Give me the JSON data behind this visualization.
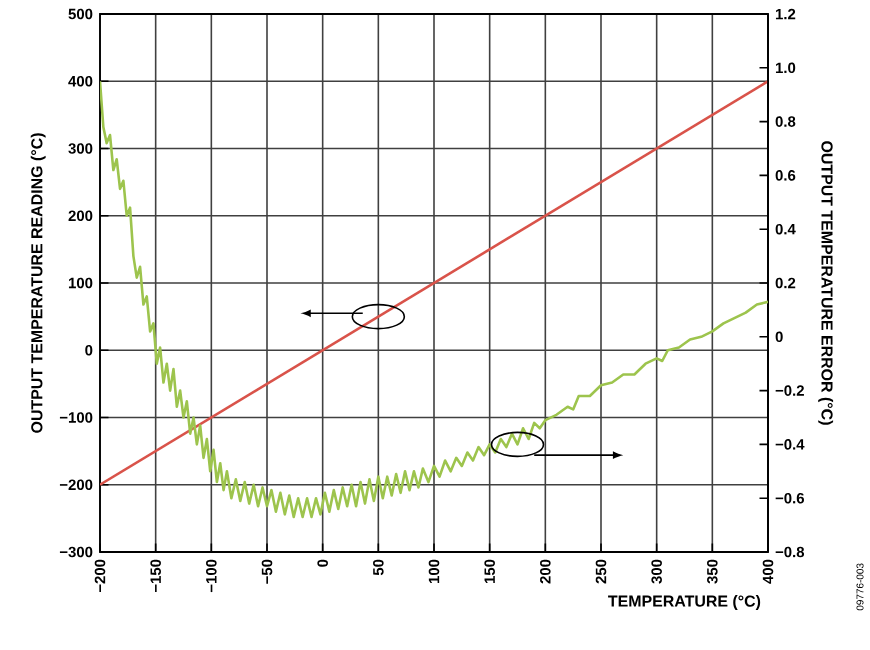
{
  "chart_data": {
    "type": "line",
    "xlabel": "TEMPERATURE (°C)",
    "ylabel": "OUTPUT TEMPERATURE READING (°C)",
    "y2label": "OUTPUT TEMPERATURE ERROR (°C)",
    "annotations": [
      "09776-003"
    ],
    "xlim": [
      -200,
      400
    ],
    "xticks": [
      {
        "value": -200,
        "label": "−200"
      },
      {
        "value": -150,
        "label": "−150"
      },
      {
        "value": -100,
        "label": "−100"
      },
      {
        "value": -50,
        "label": "−50"
      },
      0,
      50,
      100,
      150,
      200,
      250,
      300,
      350,
      400
    ],
    "ylim": [
      -300,
      500
    ],
    "yticks": [
      {
        "value": -300,
        "label": "−300"
      },
      {
        "value": -200,
        "label": "−200"
      },
      {
        "value": -100,
        "label": "−100"
      },
      0,
      100,
      200,
      300,
      400,
      500
    ],
    "y2lim": [
      -0.8,
      1.2
    ],
    "y2ticks": [
      {
        "value": -0.8,
        "label": "−0.8"
      },
      {
        "value": -0.6,
        "label": "−0.6"
      },
      {
        "value": -0.4,
        "label": "−0.4"
      },
      {
        "value": -0.2,
        "label": "−0.2"
      },
      0,
      0.2,
      0.4,
      0.6,
      0.8,
      {
        "value": 1.0,
        "label": "1.0"
      },
      1.2
    ],
    "grid": true,
    "series": [
      {
        "color": "#d9534a",
        "x": [
          -200,
          400
        ],
        "values": [
          -200,
          400
        ]
      },
      {
        "color": "#9dc44d",
        "axis": "y2",
        "x": [
          -200,
          -197,
          -194,
          -191,
          -188,
          -185,
          -182,
          -179,
          -176,
          -173,
          -170,
          -167,
          -164,
          -161,
          -158,
          -155,
          -152,
          -149,
          -146,
          -143,
          -140,
          -137,
          -134,
          -131,
          -128,
          -125,
          -122,
          -119,
          -116,
          -113,
          -110,
          -107,
          -104,
          -101,
          -98,
          -95,
          -92,
          -89,
          -86,
          -82,
          -78,
          -74,
          -70,
          -66,
          -62,
          -58,
          -54,
          -50,
          -46,
          -42,
          -38,
          -34,
          -30,
          -26,
          -22,
          -18,
          -14,
          -10,
          -6,
          -2,
          2,
          6,
          10,
          14,
          18,
          22,
          26,
          30,
          34,
          38,
          42,
          46,
          50,
          54,
          58,
          62,
          66,
          70,
          74,
          78,
          82,
          86,
          90,
          95,
          100,
          105,
          110,
          115,
          120,
          125,
          130,
          135,
          140,
          145,
          150,
          155,
          160,
          165,
          170,
          175,
          180,
          185,
          190,
          195,
          200,
          210,
          220,
          225,
          230,
          240,
          250,
          260,
          270,
          280,
          290,
          300,
          305,
          310,
          320,
          330,
          340,
          350,
          360,
          370,
          380,
          390,
          400
        ],
        "values": [
          0.95,
          0.78,
          0.72,
          0.75,
          0.62,
          0.66,
          0.55,
          0.58,
          0.45,
          0.48,
          0.3,
          0.22,
          0.26,
          0.12,
          0.15,
          0.02,
          0.05,
          -0.1,
          -0.04,
          -0.17,
          -0.1,
          -0.2,
          -0.12,
          -0.26,
          -0.2,
          -0.3,
          -0.24,
          -0.36,
          -0.3,
          -0.4,
          -0.33,
          -0.45,
          -0.38,
          -0.5,
          -0.42,
          -0.54,
          -0.47,
          -0.57,
          -0.5,
          -0.6,
          -0.53,
          -0.61,
          -0.54,
          -0.62,
          -0.55,
          -0.63,
          -0.56,
          -0.63,
          -0.57,
          -0.65,
          -0.58,
          -0.66,
          -0.59,
          -0.67,
          -0.6,
          -0.67,
          -0.6,
          -0.67,
          -0.6,
          -0.66,
          -0.58,
          -0.65,
          -0.57,
          -0.64,
          -0.56,
          -0.63,
          -0.55,
          -0.63,
          -0.54,
          -0.62,
          -0.53,
          -0.61,
          -0.52,
          -0.6,
          -0.52,
          -0.59,
          -0.51,
          -0.58,
          -0.5,
          -0.57,
          -0.5,
          -0.56,
          -0.49,
          -0.54,
          -0.48,
          -0.52,
          -0.46,
          -0.5,
          -0.45,
          -0.48,
          -0.43,
          -0.46,
          -0.41,
          -0.44,
          -0.4,
          -0.43,
          -0.38,
          -0.41,
          -0.36,
          -0.4,
          -0.34,
          -0.38,
          -0.32,
          -0.34,
          -0.31,
          -0.29,
          -0.26,
          -0.27,
          -0.22,
          -0.22,
          -0.18,
          -0.17,
          -0.14,
          -0.14,
          -0.1,
          -0.08,
          -0.09,
          -0.05,
          -0.04,
          -0.01,
          0.0,
          0.02,
          0.05,
          0.07,
          0.09,
          0.12,
          0.13
        ]
      }
    ]
  }
}
